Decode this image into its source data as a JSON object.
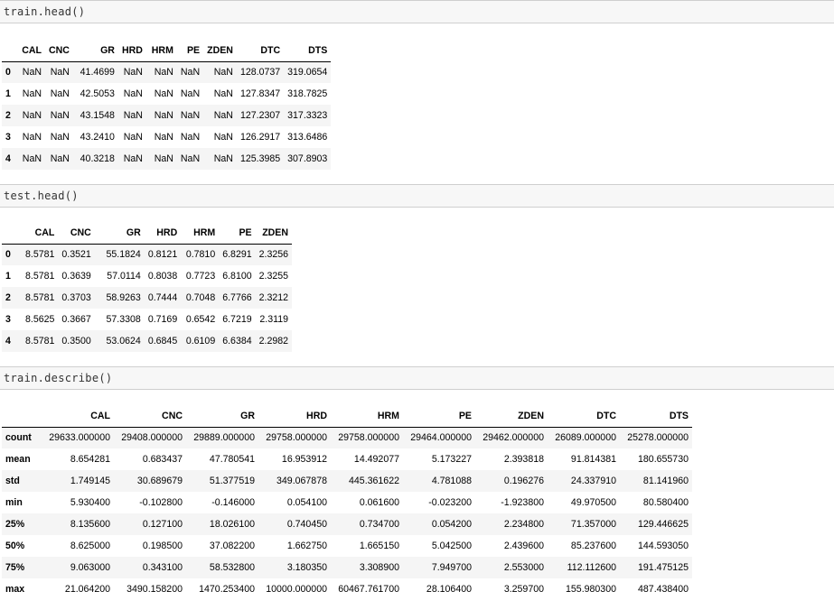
{
  "cells": [
    {
      "code": "train.head()",
      "columns": [
        "",
        "CAL",
        "CNC",
        "GR",
        "HRD",
        "HRM",
        "PE",
        "ZDEN",
        "DTC",
        "DTS"
      ],
      "rows": [
        [
          "0",
          "NaN",
          "NaN",
          "41.4699",
          "NaN",
          "NaN",
          "NaN",
          "NaN",
          "128.0737",
          "319.0654"
        ],
        [
          "1",
          "NaN",
          "NaN",
          "42.5053",
          "NaN",
          "NaN",
          "NaN",
          "NaN",
          "127.8347",
          "318.7825"
        ],
        [
          "2",
          "NaN",
          "NaN",
          "43.1548",
          "NaN",
          "NaN",
          "NaN",
          "NaN",
          "127.2307",
          "317.3323"
        ],
        [
          "3",
          "NaN",
          "NaN",
          "43.2410",
          "NaN",
          "NaN",
          "NaN",
          "NaN",
          "126.2917",
          "313.6486"
        ],
        [
          "4",
          "NaN",
          "NaN",
          "40.3218",
          "NaN",
          "NaN",
          "NaN",
          "NaN",
          "125.3985",
          "307.8903"
        ]
      ]
    },
    {
      "code": "test.head()",
      "columns": [
        "",
        "CAL",
        "CNC",
        "GR",
        "HRD",
        "HRM",
        "PE",
        "ZDEN"
      ],
      "rows": [
        [
          "0",
          "8.5781",
          "0.3521",
          "55.1824",
          "0.8121",
          "0.7810",
          "6.8291",
          "2.3256"
        ],
        [
          "1",
          "8.5781",
          "0.3639",
          "57.0114",
          "0.8038",
          "0.7723",
          "6.8100",
          "2.3255"
        ],
        [
          "2",
          "8.5781",
          "0.3703",
          "58.9263",
          "0.7444",
          "0.7048",
          "6.7766",
          "2.3212"
        ],
        [
          "3",
          "8.5625",
          "0.3667",
          "57.3308",
          "0.7169",
          "0.6542",
          "6.7219",
          "2.3119"
        ],
        [
          "4",
          "8.5781",
          "0.3500",
          "53.0624",
          "0.6845",
          "0.6109",
          "6.6384",
          "2.2982"
        ]
      ]
    },
    {
      "code": "train.describe()",
      "columns": [
        "",
        "CAL",
        "CNC",
        "GR",
        "HRD",
        "HRM",
        "PE",
        "ZDEN",
        "DTC",
        "DTS"
      ],
      "rows": [
        [
          "count",
          "29633.000000",
          "29408.000000",
          "29889.000000",
          "29758.000000",
          "29758.000000",
          "29464.000000",
          "29462.000000",
          "26089.000000",
          "25278.000000"
        ],
        [
          "mean",
          "8.654281",
          "0.683437",
          "47.780541",
          "16.953912",
          "14.492077",
          "5.173227",
          "2.393818",
          "91.814381",
          "180.655730"
        ],
        [
          "std",
          "1.749145",
          "30.689679",
          "51.377519",
          "349.067878",
          "445.361622",
          "4.781088",
          "0.196276",
          "24.337910",
          "81.141960"
        ],
        [
          "min",
          "5.930400",
          "-0.102800",
          "-0.146000",
          "0.054100",
          "0.061600",
          "-0.023200",
          "-1.923800",
          "49.970500",
          "80.580400"
        ],
        [
          "25%",
          "8.135600",
          "0.127100",
          "18.026100",
          "0.740450",
          "0.734700",
          "0.054200",
          "2.234800",
          "71.357000",
          "129.446625"
        ],
        [
          "50%",
          "8.625000",
          "0.198500",
          "37.082200",
          "1.662750",
          "1.665150",
          "5.042500",
          "2.439600",
          "85.237600",
          "144.593050"
        ],
        [
          "75%",
          "9.063000",
          "0.343100",
          "58.532800",
          "3.180350",
          "3.308900",
          "7.949700",
          "2.553000",
          "112.112600",
          "191.475125"
        ],
        [
          "max",
          "21.064200",
          "3490.158200",
          "1470.253400",
          "10000.000000",
          "60467.761700",
          "28.106400",
          "3.259700",
          "155.980300",
          "487.438400"
        ]
      ]
    }
  ]
}
